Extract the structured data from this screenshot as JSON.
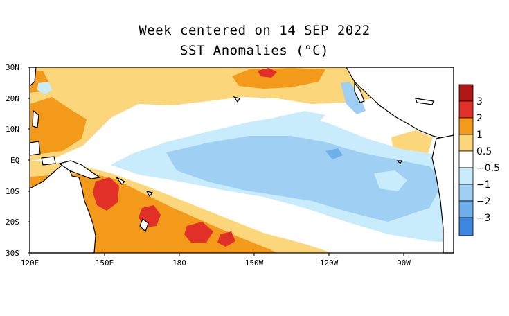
{
  "title": "Week centered on 14 SEP 2022",
  "subtitle": "SST Anomalies (°C)",
  "lat_labels": [
    "30N",
    "20N",
    "10N",
    "EQ",
    "10S",
    "20S",
    "30S"
  ],
  "lon_labels": [
    "120E",
    "150E",
    "180",
    "150W",
    "120W",
    "90W"
  ],
  "legend": {
    "labels": [
      "3",
      "2",
      "1",
      "0.5",
      "−0.5",
      "−1",
      "−2",
      "−3"
    ],
    "colors": [
      "#b01818",
      "#e03028",
      "#f39a1a",
      "#fbd67a",
      "#ffffff",
      "#c8ecfb",
      "#9fd0f3",
      "#6eb0ea",
      "#3d86e0"
    ]
  },
  "colors": {
    "warm_light": "#fbd67a",
    "warm": "#f39a1a",
    "warm_strong": "#e03028",
    "cool_light": "#c8ecfb",
    "cool": "#9fd0f3",
    "cool_strong": "#6eb0ea"
  }
}
